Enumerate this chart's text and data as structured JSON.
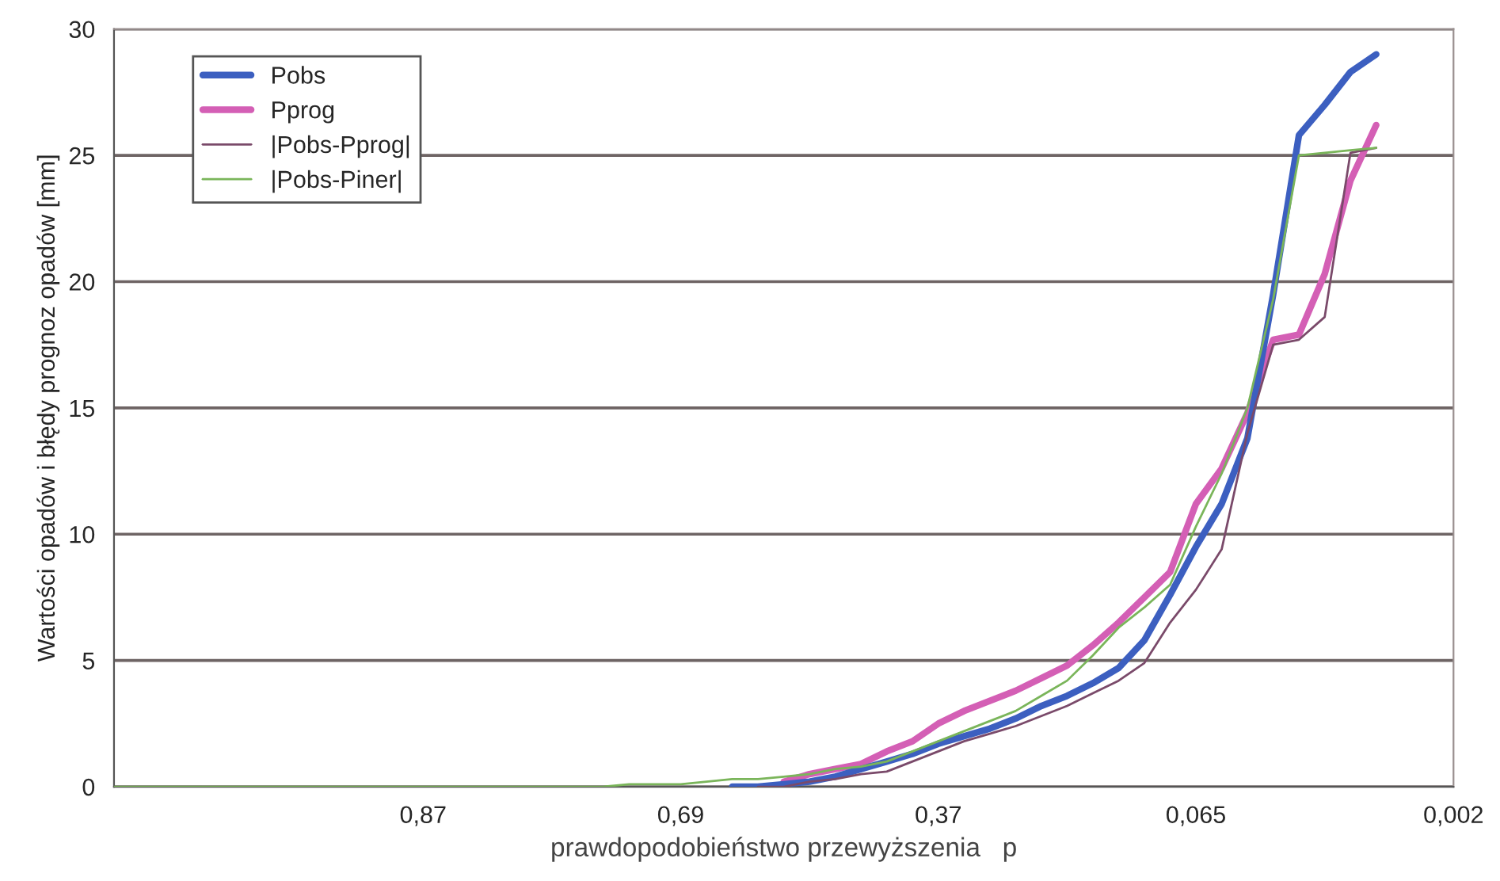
{
  "chart_data": {
    "type": "line",
    "xlabel": "prawdopodobieństwo przewyższenia   p",
    "ylabel": "Wartości opadów i błędy prognoz opadów [mm]",
    "categories": [
      null,
      null,
      null,
      null,
      null,
      null,
      null,
      null,
      null,
      null,
      null,
      null,
      "0,87",
      null,
      null,
      null,
      null,
      null,
      null,
      null,
      null,
      null,
      "0,69",
      null,
      null,
      null,
      null,
      null,
      null,
      null,
      null,
      null,
      "0,37",
      null,
      null,
      null,
      null,
      null,
      null,
      null,
      null,
      null,
      "0,065",
      null,
      null,
      null,
      null,
      null,
      null,
      null,
      null,
      null,
      "0,002"
    ],
    "ylim": [
      0,
      30
    ],
    "yticks": [
      0,
      5,
      10,
      15,
      20,
      25,
      30
    ],
    "grid": "y",
    "legend": "top left",
    "series": [
      {
        "name": "Pobs",
        "color": "#3c5fc0",
        "values": [
          null,
          null,
          null,
          null,
          null,
          null,
          null,
          null,
          null,
          null,
          null,
          null,
          null,
          null,
          null,
          null,
          null,
          null,
          null,
          null,
          null,
          null,
          null,
          null,
          0,
          0.0,
          0.1,
          0.2,
          0.4,
          0.7,
          1.0,
          1.3,
          1.7,
          2.0,
          2.3,
          2.7,
          3.2,
          3.6,
          4.1,
          4.7,
          5.8,
          7.6,
          9.5,
          11.2,
          13.8,
          19.5,
          25.8,
          27.0,
          28.3,
          29.0,
          null,
          null,
          null
        ]
      },
      {
        "name": "Pprog",
        "color": "#d45fb5",
        "values": [
          null,
          null,
          null,
          null,
          null,
          null,
          null,
          null,
          null,
          null,
          null,
          null,
          null,
          null,
          null,
          null,
          null,
          null,
          null,
          null,
          null,
          null,
          null,
          null,
          null,
          null,
          0.2,
          0.5,
          0.7,
          0.9,
          1.4,
          1.8,
          2.5,
          3.0,
          3.4,
          3.8,
          4.3,
          4.8,
          5.6,
          6.5,
          7.5,
          8.5,
          11.2,
          12.6,
          14.8,
          17.7,
          17.9,
          20.3,
          24.0,
          26.2,
          null,
          null,
          null
        ]
      },
      {
        "name": "|Pobs-Pprog|",
        "color": "#7a4a6a",
        "values": [
          null,
          null,
          null,
          null,
          null,
          null,
          null,
          null,
          null,
          null,
          null,
          null,
          null,
          null,
          null,
          null,
          null,
          null,
          null,
          null,
          null,
          null,
          null,
          null,
          null,
          0,
          0.0,
          0.2,
          0.3,
          0.5,
          0.6,
          1.0,
          1.4,
          1.8,
          2.1,
          2.4,
          2.8,
          3.2,
          3.7,
          4.2,
          4.9,
          6.5,
          7.8,
          9.4,
          14.0,
          17.5,
          17.7,
          18.6,
          25.1,
          25.3,
          null,
          null,
          null
        ]
      },
      {
        "name": "|Pobs-Piner|",
        "color": "#7ab55a",
        "values": [
          0,
          0,
          0,
          0,
          0,
          0,
          0,
          0,
          0,
          0,
          0,
          0,
          0,
          0,
          0,
          0.0,
          0.0,
          0.0,
          0.0,
          0.0,
          0.1,
          0.1,
          0.1,
          0.2,
          0.3,
          0.3,
          0.4,
          0.5,
          0.7,
          0.8,
          1.0,
          1.4,
          1.8,
          2.2,
          2.6,
          3.0,
          3.6,
          4.2,
          5.2,
          6.3,
          7.1,
          8.0,
          10.3,
          12.4,
          15.0,
          19.3,
          25.0,
          25.1,
          25.2,
          25.3,
          null,
          null,
          null
        ]
      }
    ]
  }
}
